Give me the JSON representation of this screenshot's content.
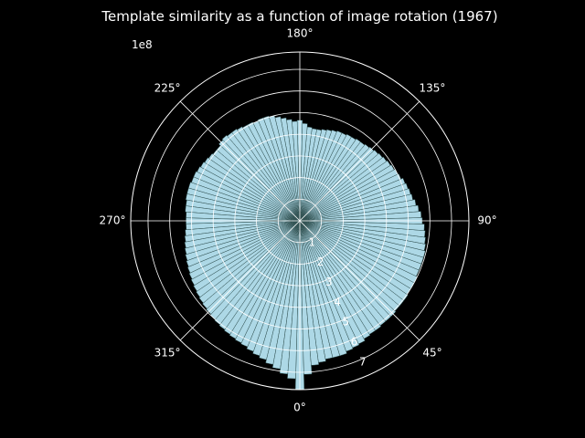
{
  "chart_data": {
    "type": "bar",
    "projection": "polar",
    "title": "Template similarity as a function of image rotation (1967)",
    "theta_zero_location": "bottom",
    "theta_direction": "counterclockwise",
    "theta_unit": "degrees",
    "theta_tick_labels": [
      {
        "deg": 0,
        "label": "0°"
      },
      {
        "deg": 45,
        "label": "45°"
      },
      {
        "deg": 90,
        "label": "90°"
      },
      {
        "deg": 135,
        "label": "135°"
      },
      {
        "deg": 180,
        "label": "180°"
      },
      {
        "deg": 225,
        "label": "225°"
      },
      {
        "deg": 270,
        "label": "270°"
      },
      {
        "deg": 315,
        "label": "315°"
      }
    ],
    "r_tick_values": [
      1,
      2,
      3,
      4,
      5,
      6,
      7
    ],
    "r_tick_labels": [
      "1",
      "2",
      "3",
      "4",
      "5",
      "6",
      "7"
    ],
    "r_scale_label": "1e8",
    "rlim": [
      0,
      7.8
    ],
    "r_label_position_deg": 23,
    "grid": true,
    "bar_color": "#add8e6",
    "bar_edge_color": "#2f4f4f",
    "background_color": "#000000",
    "foreground_color": "#ffffff",
    "bin_width_deg": 3,
    "theta_deg": [
      0,
      3,
      6,
      9,
      12,
      15,
      18,
      21,
      24,
      27,
      30,
      33,
      36,
      39,
      42,
      45,
      48,
      51,
      54,
      57,
      60,
      63,
      66,
      69,
      72,
      75,
      78,
      81,
      84,
      87,
      90,
      93,
      96,
      99,
      102,
      105,
      108,
      111,
      114,
      117,
      120,
      123,
      126,
      129,
      132,
      135,
      138,
      141,
      144,
      147,
      150,
      153,
      156,
      159,
      162,
      165,
      168,
      171,
      174,
      177,
      180,
      183,
      186,
      189,
      192,
      195,
      198,
      201,
      204,
      207,
      210,
      213,
      216,
      219,
      222,
      225,
      228,
      231,
      234,
      237,
      240,
      243,
      246,
      249,
      252,
      255,
      258,
      261,
      264,
      267,
      270,
      273,
      276,
      279,
      282,
      285,
      288,
      291,
      294,
      297,
      300,
      303,
      306,
      309,
      312,
      315,
      318,
      321,
      324,
      327,
      330,
      333,
      336,
      339,
      342,
      345,
      348,
      351,
      354,
      357
    ],
    "values": [
      7.8,
      7.1,
      6.7,
      6.6,
      6.5,
      6.5,
      6.5,
      6.4,
      6.35,
      6.3,
      6.2,
      6.15,
      6.15,
      6.1,
      6.1,
      6.1,
      6.05,
      6.05,
      6.05,
      6.0,
      6.0,
      6.0,
      5.95,
      5.95,
      5.95,
      5.95,
      5.9,
      5.85,
      5.8,
      5.75,
      5.65,
      5.6,
      5.5,
      5.4,
      5.3,
      5.25,
      5.2,
      5.15,
      5.05,
      5.0,
      4.95,
      4.9,
      4.85,
      4.8,
      4.75,
      4.7,
      4.65,
      4.6,
      4.6,
      4.55,
      4.55,
      4.5,
      4.5,
      4.45,
      4.4,
      4.35,
      4.3,
      4.3,
      4.35,
      4.5,
      4.65,
      4.6,
      4.7,
      4.8,
      4.9,
      5.0,
      5.05,
      5.05,
      5.0,
      5.05,
      5.05,
      5.1,
      5.15,
      5.15,
      5.2,
      5.15,
      5.05,
      5.05,
      5.1,
      5.15,
      5.2,
      5.25,
      5.3,
      5.3,
      5.35,
      5.35,
      5.35,
      5.3,
      5.3,
      5.25,
      5.25,
      5.25,
      5.3,
      5.35,
      5.4,
      5.45,
      5.5,
      5.55,
      5.6,
      5.65,
      5.7,
      5.75,
      5.8,
      5.85,
      5.9,
      5.95,
      6.0,
      6.05,
      6.1,
      6.15,
      6.2,
      6.25,
      6.3,
      6.4,
      6.5,
      6.6,
      6.75,
      6.9,
      7.1,
      7.3
    ]
  }
}
